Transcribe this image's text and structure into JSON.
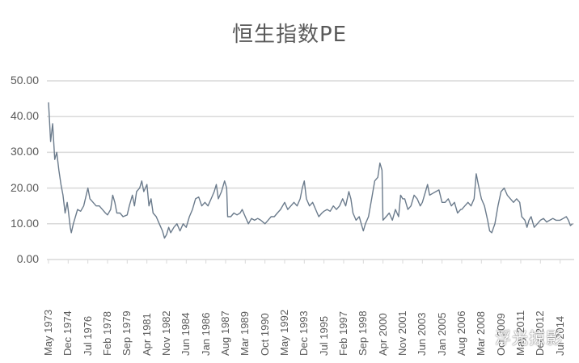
{
  "chart_data": {
    "type": "line",
    "title": "恒生指数PE",
    "xlabel": "",
    "ylabel": "",
    "ylim": [
      0,
      50
    ],
    "yticks": [
      "0.00",
      "10.00",
      "20.00",
      "30.00",
      "40.00",
      "50.00"
    ],
    "grid": true,
    "legend": "none",
    "xtick_labels": [
      "May 1973",
      "Dec 1974",
      "Jul 1976",
      "Feb 1978",
      "Sep 1979",
      "Apr 1981",
      "Nov 1982",
      "Jun 1984",
      "Jan 1986",
      "Aug 1987",
      "Mar 1989",
      "Oct 1990",
      "May 1992",
      "Dec 1993",
      "Jul 1995",
      "Feb 1997",
      "Sep 1998",
      "Apr 2000",
      "Nov 2001",
      "Jun 2003",
      "Jan 2005",
      "Aug 2006",
      "Mar 2008",
      "Oct 2009",
      "May 2011",
      "Dec 2012",
      "Jul 2014"
    ],
    "series": [
      {
        "name": "恒生指数PE",
        "color": "#6b7b8c",
        "points": [
          [
            "May 1973",
            44
          ],
          [
            "Jul 1973",
            33
          ],
          [
            "Sep 1973",
            38
          ],
          [
            "Nov 1973",
            28
          ],
          [
            "Jan 1974",
            30
          ],
          [
            "Mar 1974",
            25
          ],
          [
            "May 1974",
            21
          ],
          [
            "Jul 1974",
            18
          ],
          [
            "Sep 1974",
            13
          ],
          [
            "Nov 1974",
            16
          ],
          [
            "Dec 1974",
            14
          ],
          [
            "Feb 1975",
            9
          ],
          [
            "Mar 1975",
            7.5
          ],
          [
            "May 1975",
            10
          ],
          [
            "Jul 1975",
            12
          ],
          [
            "Sep 1975",
            14
          ],
          [
            "Dec 1975",
            13.5
          ],
          [
            "Mar 1976",
            15
          ],
          [
            "Jul 1976",
            20
          ],
          [
            "Sep 1976",
            17
          ],
          [
            "Dec 1976",
            16
          ],
          [
            "Mar 1977",
            15
          ],
          [
            "Jun 1977",
            15
          ],
          [
            "Sep 1977",
            14
          ],
          [
            "Dec 1977",
            13
          ],
          [
            "Feb 1978",
            12.5
          ],
          [
            "May 1978",
            14
          ],
          [
            "Jul 1978",
            18
          ],
          [
            "Sep 1978",
            16
          ],
          [
            "Nov 1978",
            13
          ],
          [
            "Feb 1979",
            13
          ],
          [
            "May 1979",
            12
          ],
          [
            "Sep 1979",
            12.5
          ],
          [
            "Nov 1979",
            15
          ],
          [
            "Feb 1980",
            18
          ],
          [
            "Apr 1980",
            15
          ],
          [
            "Jun 1980",
            19
          ],
          [
            "Sep 1980",
            20
          ],
          [
            "Nov 1980",
            22
          ],
          [
            "Jan 1981",
            19
          ],
          [
            "Apr 1981",
            21
          ],
          [
            "Jun 1981",
            15
          ],
          [
            "Aug 1981",
            17
          ],
          [
            "Oct 1981",
            13
          ],
          [
            "Jan 1982",
            12
          ],
          [
            "Apr 1982",
            10
          ],
          [
            "Jul 1982",
            8
          ],
          [
            "Sep 1982",
            6
          ],
          [
            "Nov 1982",
            7
          ],
          [
            "Jan 1983",
            9
          ],
          [
            "Mar 1983",
            7.5
          ],
          [
            "Jun 1983",
            9
          ],
          [
            "Sep 1983",
            10
          ],
          [
            "Dec 1983",
            8
          ],
          [
            "Mar 1984",
            10
          ],
          [
            "Jun 1984",
            9
          ],
          [
            "Sep 1984",
            12
          ],
          [
            "Dec 1984",
            14
          ],
          [
            "Mar 1985",
            17
          ],
          [
            "Jun 1985",
            17.5
          ],
          [
            "Sep 1985",
            15
          ],
          [
            "Dec 1985",
            16
          ],
          [
            "Mar 1986",
            15
          ],
          [
            "Jun 1986",
            17
          ],
          [
            "Sep 1986",
            19
          ],
          [
            "Nov 1986",
            21
          ],
          [
            "Jan 1987",
            17
          ],
          [
            "Apr 1987",
            19
          ],
          [
            "Jul 1987",
            22
          ],
          [
            "Sep 1987",
            20
          ],
          [
            "Oct 1987",
            12
          ],
          [
            "Jan 1988",
            12
          ],
          [
            "Apr 1988",
            13
          ],
          [
            "Jul 1988",
            12.5
          ],
          [
            "Oct 1988",
            13
          ],
          [
            "Dec 1988",
            14
          ],
          [
            "Mar 1989",
            12
          ],
          [
            "Jun 1989",
            10
          ],
          [
            "Sep 1989",
            11.5
          ],
          [
            "Dec 1989",
            11
          ],
          [
            "Mar 1990",
            11.5
          ],
          [
            "Jun 1990",
            11
          ],
          [
            "Oct 1990",
            10
          ],
          [
            "Jan 1991",
            11
          ],
          [
            "Apr 1991",
            12
          ],
          [
            "Jul 1991",
            12
          ],
          [
            "Oct 1991",
            13
          ],
          [
            "Jan 1992",
            14
          ],
          [
            "May 1992",
            16
          ],
          [
            "Aug 1992",
            14
          ],
          [
            "Nov 1992",
            15
          ],
          [
            "Feb 1993",
            16
          ],
          [
            "May 1993",
            15
          ],
          [
            "Aug 1993",
            17
          ],
          [
            "Oct 1993",
            20
          ],
          [
            "Dec 1993",
            22
          ],
          [
            "Feb 1994",
            17
          ],
          [
            "May 1994",
            15
          ],
          [
            "Aug 1994",
            16
          ],
          [
            "Nov 1994",
            14
          ],
          [
            "Feb 1995",
            12
          ],
          [
            "May 1995",
            13
          ],
          [
            "Jul 1995",
            13.5
          ],
          [
            "Oct 1995",
            14
          ],
          [
            "Jan 1996",
            13.5
          ],
          [
            "Apr 1996",
            15
          ],
          [
            "Jul 1996",
            14
          ],
          [
            "Oct 1996",
            15
          ],
          [
            "Jan 1997",
            17
          ],
          [
            "Apr 1997",
            15
          ],
          [
            "Jul 1997",
            19
          ],
          [
            "Sep 1997",
            17
          ],
          [
            "Nov 1997",
            13
          ],
          [
            "Feb 1998",
            11
          ],
          [
            "May 1998",
            12
          ],
          [
            "Aug 1998",
            9
          ],
          [
            "Sep 1998",
            8
          ],
          [
            "Nov 1998",
            10
          ],
          [
            "Feb 1999",
            12
          ],
          [
            "May 1999",
            17
          ],
          [
            "Aug 1999",
            22
          ],
          [
            "Nov 1999",
            23
          ],
          [
            "Jan 2000",
            27
          ],
          [
            "Mar 2000",
            25
          ],
          [
            "Apr 2000",
            11
          ],
          [
            "Jul 2000",
            12
          ],
          [
            "Oct 2000",
            13
          ],
          [
            "Jan 2001",
            11
          ],
          [
            "Apr 2001",
            14
          ],
          [
            "Jul 2001",
            12
          ],
          [
            "Sep 2001",
            18
          ],
          [
            "Nov 2001",
            17
          ],
          [
            "Jan 2002",
            17
          ],
          [
            "Apr 2002",
            14
          ],
          [
            "Jul 2002",
            15
          ],
          [
            "Oct 2002",
            18
          ],
          [
            "Jan 2003",
            17
          ],
          [
            "Apr 2003",
            15
          ],
          [
            "Jun 2003",
            16
          ],
          [
            "Sep 2003",
            19
          ],
          [
            "Nov 2003",
            21
          ],
          [
            "Jan 2004",
            18
          ],
          [
            "Apr 2004",
            18.5
          ],
          [
            "Jul 2004",
            19
          ],
          [
            "Oct 2004",
            19.5
          ],
          [
            "Jan 2005",
            16
          ],
          [
            "Apr 2005",
            16
          ],
          [
            "Jul 2005",
            17
          ],
          [
            "Oct 2005",
            15
          ],
          [
            "Jan 2006",
            16
          ],
          [
            "Apr 2006",
            13
          ],
          [
            "Jul 2006",
            14
          ],
          [
            "Aug 2006",
            14
          ],
          [
            "Nov 2006",
            15
          ],
          [
            "Feb 2007",
            16
          ],
          [
            "May 2007",
            15
          ],
          [
            "Aug 2007",
            17
          ],
          [
            "Oct 2007",
            24
          ],
          [
            "Dec 2007",
            21
          ],
          [
            "Mar 2008",
            17
          ],
          [
            "Jun 2008",
            15
          ],
          [
            "Sep 2008",
            11
          ],
          [
            "Nov 2008",
            8
          ],
          [
            "Jan 2009",
            7.5
          ],
          [
            "Apr 2009",
            10
          ],
          [
            "Jul 2009",
            15
          ],
          [
            "Oct 2009",
            19
          ],
          [
            "Jan 2010",
            20
          ],
          [
            "Apr 2010",
            18
          ],
          [
            "Jul 2010",
            17
          ],
          [
            "Oct 2010",
            16
          ],
          [
            "Jan 2011",
            17
          ],
          [
            "Apr 2011",
            16
          ],
          [
            "Jun 2011",
            12
          ],
          [
            "Sep 2011",
            11
          ],
          [
            "Nov 2011",
            9
          ],
          [
            "Jan 2012",
            11
          ],
          [
            "Mar 2012",
            12
          ],
          [
            "Jun 2012",
            9
          ],
          [
            "Sep 2012",
            10
          ],
          [
            "Dec 2012",
            11
          ],
          [
            "Mar 2013",
            11.5
          ],
          [
            "Jun 2013",
            10.5
          ],
          [
            "Sep 2013",
            11
          ],
          [
            "Dec 2013",
            11.5
          ],
          [
            "Mar 2014",
            11
          ],
          [
            "Jul 2014",
            11
          ],
          [
            "Oct 2014",
            11.5
          ],
          [
            "Jan 2015",
            12
          ],
          [
            "Mar 2015",
            11
          ],
          [
            "May 2015",
            9.5
          ],
          [
            "Jul 2015",
            10
          ]
        ]
      }
    ]
  },
  "watermark": "浮光掠影"
}
